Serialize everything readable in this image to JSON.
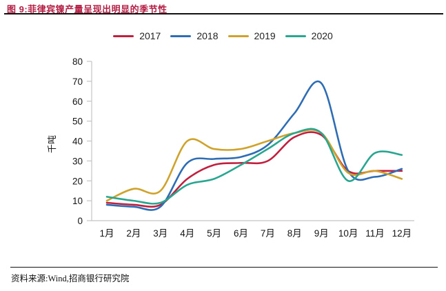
{
  "figure": {
    "title": "图 9:菲律宾镍产量呈现出明显的季节性",
    "source": "资料来源:Wind,招商银行研究院"
  },
  "colors": {
    "title_red": "#B41E44",
    "rule_black": "#111111",
    "axis_gray": "#C4C4C4",
    "text_black": "#141414"
  },
  "chart_data": {
    "type": "line",
    "x": [
      "1月",
      "2月",
      "3月",
      "4月",
      "5月",
      "6月",
      "7月",
      "8月",
      "9月",
      "10月",
      "11月",
      "12月"
    ],
    "series": [
      {
        "name": "2017",
        "color": "#C0203E",
        "values": [
          9,
          8,
          8,
          21,
          28,
          29,
          30,
          42,
          43,
          25,
          25,
          25
        ]
      },
      {
        "name": "2018",
        "color": "#2E6DB4",
        "values": [
          8,
          7,
          7,
          29,
          31,
          32,
          38,
          54,
          69,
          25,
          22,
          26
        ]
      },
      {
        "name": "2019",
        "color": "#CFA32B",
        "values": [
          10,
          16,
          15,
          40,
          36,
          36,
          40,
          44,
          44,
          24,
          25,
          21
        ]
      },
      {
        "name": "2020",
        "color": "#29A690",
        "values": [
          12,
          10,
          9,
          18,
          21,
          28,
          36,
          44,
          44,
          20,
          34,
          33
        ]
      }
    ],
    "ylabel": "千吨",
    "ylim": [
      0,
      80
    ],
    "ytick_step": 10,
    "grid": false,
    "legend_position": "top",
    "line_smoothing": "spline"
  }
}
